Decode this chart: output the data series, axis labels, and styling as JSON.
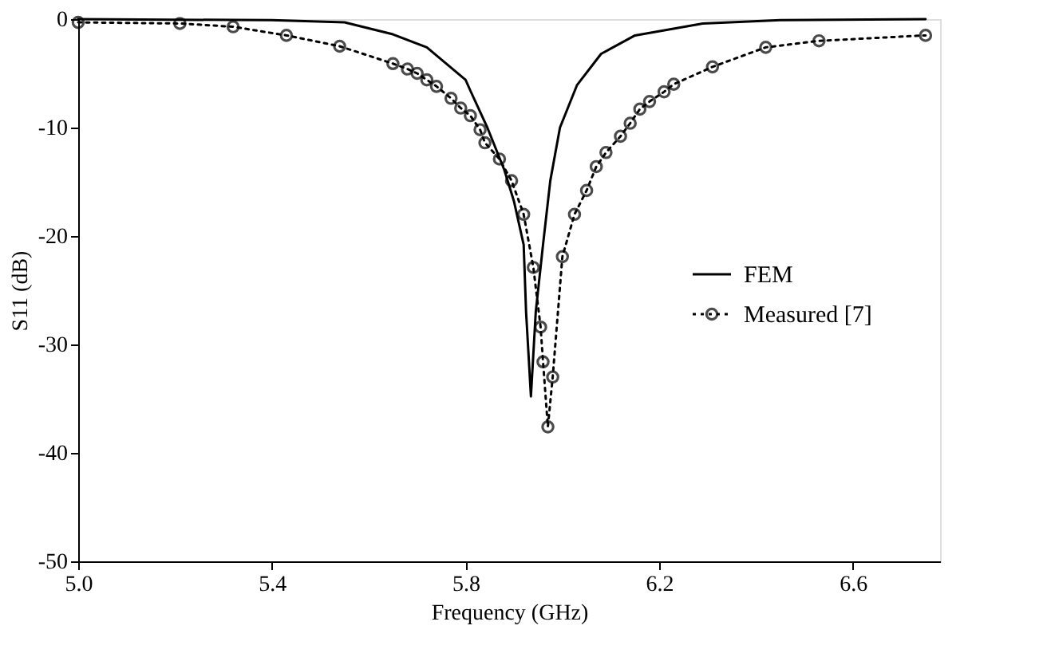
{
  "chart_data": {
    "type": "line",
    "xlabel": "Frequency (GHz)",
    "ylabel": "S11 (dB)",
    "xlim": [
      5.0,
      6.78
    ],
    "xticks": [
      {
        "value": 5.0,
        "label": "5.0"
      },
      5.4,
      5.8,
      6.2,
      6.6
    ],
    "ylim": [
      -50,
      0
    ],
    "yticks": [
      0,
      -10,
      -20,
      -30,
      -40,
      -50
    ],
    "grid": false,
    "legend": "right",
    "series": [
      {
        "name": "FEM",
        "color": "#000000",
        "line_style": "solid",
        "marker": "none",
        "x": [
          5.0,
          5.4,
          5.55,
          5.65,
          5.72,
          5.8,
          5.81,
          5.845,
          5.88,
          5.9,
          5.92,
          5.925,
          5.935,
          5.945,
          5.96,
          5.975,
          5.995,
          6.03,
          6.08,
          6.15,
          6.29,
          6.45,
          6.75
        ],
        "values": [
          0,
          -0.1,
          -0.3,
          -1.4,
          -2.6,
          -5.6,
          -6.6,
          -10,
          -13.9,
          -16.8,
          -20.8,
          -27,
          -34.8,
          -27,
          -20.8,
          -14.9,
          -10,
          -6.1,
          -3.2,
          -1.5,
          -0.4,
          -0.1,
          0
        ]
      },
      {
        "name": "Measured [7]",
        "color": "#000000",
        "line_style": "dotted",
        "marker": "circle",
        "x": [
          5.0,
          5.21,
          5.32,
          5.43,
          5.54,
          5.65,
          5.68,
          5.7,
          5.72,
          5.74,
          5.77,
          5.79,
          5.81,
          5.83,
          5.84,
          5.87,
          5.895,
          5.92,
          5.94,
          5.955,
          5.96,
          5.97,
          5.98,
          6.0,
          6.025,
          6.05,
          6.07,
          6.09,
          6.12,
          6.14,
          6.16,
          6.18,
          6.21,
          6.23,
          6.31,
          6.42,
          6.53,
          6.75
        ],
        "values": [
          -0.3,
          -0.4,
          -0.7,
          -1.5,
          -2.5,
          -4.1,
          -4.6,
          -5.0,
          -5.6,
          -6.2,
          -7.3,
          -8.2,
          -8.9,
          -10.2,
          -11.4,
          -12.9,
          -14.9,
          -18.0,
          -22.9,
          -28.4,
          -31.6,
          -37.6,
          -33.0,
          -21.9,
          -18.0,
          -15.8,
          -13.6,
          -12.3,
          -10.8,
          -9.6,
          -8.3,
          -7.6,
          -6.7,
          -6.0,
          -4.4,
          -2.6,
          -2.0,
          -1.5
        ]
      }
    ]
  }
}
